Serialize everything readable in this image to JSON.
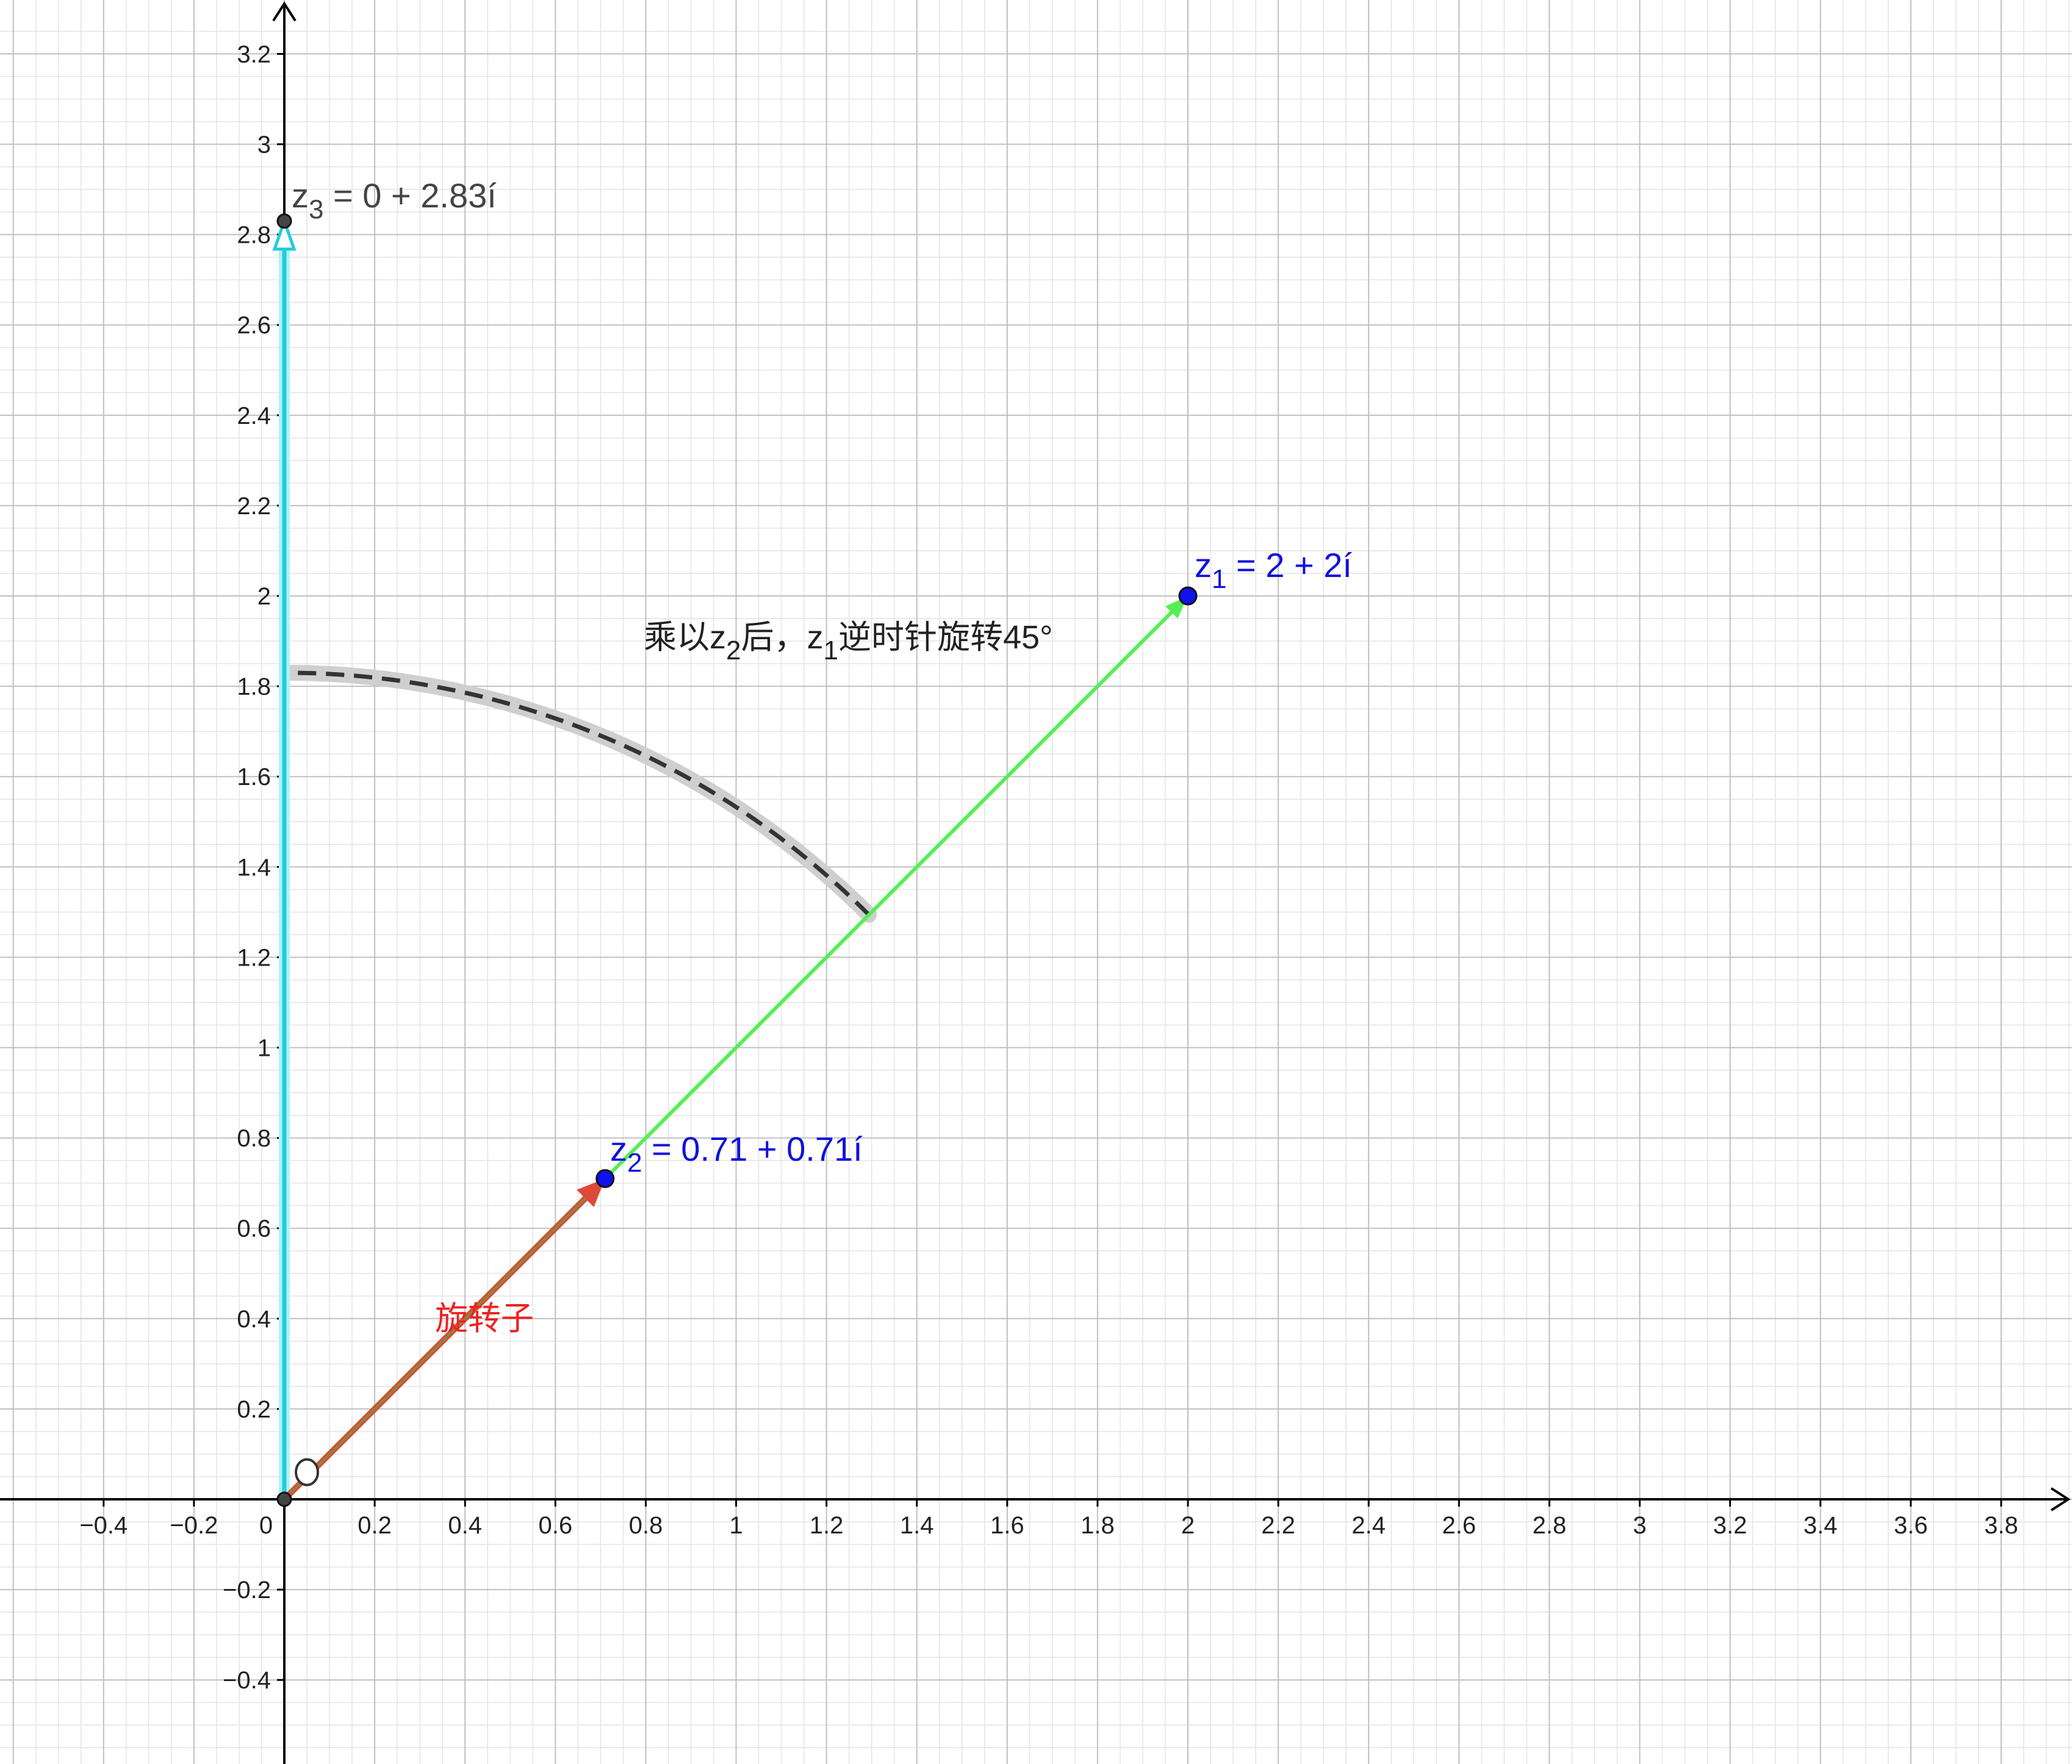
{
  "app": {
    "name": "GeoGebra-style complex plane"
  },
  "colors": {
    "background": "#ffffff",
    "grid_minor": "#e4e4e4",
    "grid_major": "#c0c0c0",
    "axis": "#000000",
    "z1_vector": "#55ee55",
    "z2_vector": "#dd4a3a",
    "z3_vector": "#22ccdd",
    "point_blue": "#1111ee",
    "point_dark": "#444444",
    "arc_dash": "#333333",
    "arc_halo": "#cfcfcf",
    "text_blue": "#1111dd",
    "text_dark": "#222222",
    "text_red": "#ee2222"
  },
  "chart_data": {
    "type": "scatter",
    "xlim": [
      -0.62,
      3.98
    ],
    "ylim": [
      -0.58,
      3.3
    ],
    "grid": true,
    "x_ticks": [
      -0.4,
      -0.2,
      0.2,
      0.4,
      0.6,
      0.8,
      1,
      1.2,
      1.4,
      1.6,
      1.8,
      2,
      2.2,
      2.4,
      2.6,
      2.8,
      3,
      3.2,
      3.4,
      3.6,
      3.8
    ],
    "x_tick_labels": [
      "−0.4",
      "−0.2",
      "0.2",
      "0.4",
      "0.6",
      "0.8",
      "1",
      "1.2",
      "1.4",
      "1.6",
      "1.8",
      "2",
      "2.2",
      "2.4",
      "2.6",
      "2.8",
      "3",
      "3.2",
      "3.4",
      "3.6",
      "3.8"
    ],
    "y_ticks": [
      -0.4,
      -0.2,
      0.2,
      0.4,
      0.6,
      0.8,
      1,
      1.2,
      1.4,
      1.6,
      1.8,
      2,
      2.2,
      2.4,
      2.6,
      2.8,
      3,
      3.2
    ],
    "y_tick_labels": [
      "−0.4",
      "−0.2",
      "0.2",
      "0.4",
      "0.6",
      "0.8",
      "1",
      "1.2",
      "1.4",
      "1.6",
      "1.8",
      "2",
      "2.2",
      "2.4",
      "2.6",
      "2.8",
      "3",
      "3.2"
    ],
    "origin_label": "0",
    "points": [
      {
        "id": "z1",
        "x": 2,
        "y": 2,
        "label_main": "z",
        "label_sub": "1",
        "label_rest": " = 2 + 2í"
      },
      {
        "id": "z2",
        "x": 0.71,
        "y": 0.71,
        "label_main": "z",
        "label_sub": "2",
        "label_rest": " = 0.71 + 0.71í"
      },
      {
        "id": "z3",
        "x": 0,
        "y": 2.83,
        "label_main": "z",
        "label_sub": "3",
        "label_rest": " = 0 + 2.83í"
      },
      {
        "id": "origin",
        "x": 0,
        "y": 0
      }
    ],
    "vectors": [
      {
        "id": "z1",
        "from": [
          0,
          0
        ],
        "to": [
          2,
          2
        ]
      },
      {
        "id": "z2",
        "from": [
          0,
          0
        ],
        "to": [
          0.71,
          0.71
        ]
      },
      {
        "id": "z3",
        "from": [
          0,
          0
        ],
        "to": [
          0,
          2.83
        ]
      }
    ],
    "rotation_arc": {
      "radius": 1.83,
      "start_deg": 45,
      "end_deg": 90
    },
    "annotations": {
      "rotation_note": {
        "part1": "乘以z",
        "sub1": "2",
        "part2": "后，z",
        "sub2": "1",
        "part3": "逆时针旋转45°"
      },
      "rotator": "旋转子"
    }
  }
}
